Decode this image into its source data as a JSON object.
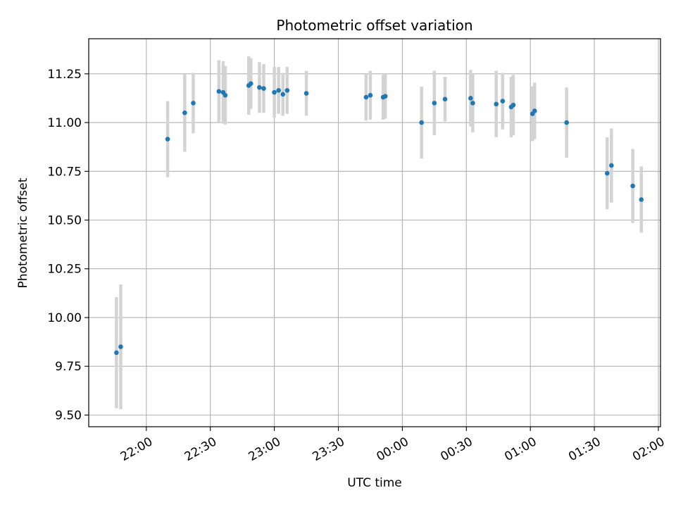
{
  "chart_data": {
    "type": "scatter",
    "title": "Photometric offset variation",
    "xlabel": "UTC time",
    "ylabel": "Photometric offset",
    "x_tick_labels": [
      "22:00",
      "22:30",
      "23:00",
      "23:30",
      "00:00",
      "00:30",
      "01:00",
      "01:30",
      "02:00"
    ],
    "y_tick_labels": [
      "9.50",
      "9.75",
      "10.00",
      "10.25",
      "10.50",
      "10.75",
      "11.00",
      "11.25"
    ],
    "y_ticks": [
      9.5,
      9.75,
      10.0,
      10.25,
      10.5,
      10.75,
      11.0,
      11.25
    ],
    "xlim": [
      "21:33",
      "02:01"
    ],
    "ylim": [
      9.44,
      11.43
    ],
    "grid": true,
    "colors": {
      "marker": "#1f77b4",
      "errorbar": "#d3d3d3",
      "grid": "#b0b0b0"
    },
    "series": [
      {
        "points": [
          {
            "t": "21:46",
            "y": 9.82,
            "err": 0.285
          },
          {
            "t": "21:48",
            "y": 9.85,
            "err": 0.32
          },
          {
            "t": "22:10",
            "y": 10.915,
            "err": 0.195
          },
          {
            "t": "22:18",
            "y": 11.05,
            "err": 0.2
          },
          {
            "t": "22:22",
            "y": 11.1,
            "err": 0.155
          },
          {
            "t": "22:34",
            "y": 11.16,
            "err": 0.16
          },
          {
            "t": "22:36",
            "y": 11.155,
            "err": 0.16
          },
          {
            "t": "22:37",
            "y": 11.14,
            "err": 0.15
          },
          {
            "t": "22:48",
            "y": 11.19,
            "err": 0.15
          },
          {
            "t": "22:49",
            "y": 11.2,
            "err": 0.13
          },
          {
            "t": "22:53",
            "y": 11.18,
            "err": 0.13
          },
          {
            "t": "22:55",
            "y": 11.175,
            "err": 0.125
          },
          {
            "t": "23:00",
            "y": 11.155,
            "err": 0.13
          },
          {
            "t": "23:02",
            "y": 11.165,
            "err": 0.12
          },
          {
            "t": "23:04",
            "y": 11.145,
            "err": 0.11
          },
          {
            "t": "23:06",
            "y": 11.165,
            "err": 0.12
          },
          {
            "t": "23:15",
            "y": 11.15,
            "err": 0.115
          },
          {
            "t": "23:43",
            "y": 11.13,
            "err": 0.12
          },
          {
            "t": "23:45",
            "y": 11.14,
            "err": 0.125
          },
          {
            "t": "23:51",
            "y": 11.13,
            "err": 0.115
          },
          {
            "t": "23:52",
            "y": 11.135,
            "err": 0.115
          },
          {
            "t": "00:09",
            "y": 11.0,
            "err": 0.185
          },
          {
            "t": "00:15",
            "y": 11.1,
            "err": 0.165
          },
          {
            "t": "00:20",
            "y": 11.12,
            "err": 0.115
          },
          {
            "t": "00:32",
            "y": 11.125,
            "err": 0.145
          },
          {
            "t": "00:33",
            "y": 11.1,
            "err": 0.15
          },
          {
            "t": "00:44",
            "y": 11.095,
            "err": 0.17
          },
          {
            "t": "00:47",
            "y": 11.11,
            "err": 0.145
          },
          {
            "t": "00:51",
            "y": 11.08,
            "err": 0.155
          },
          {
            "t": "00:52",
            "y": 11.09,
            "err": 0.155
          },
          {
            "t": "01:01",
            "y": 11.045,
            "err": 0.14
          },
          {
            "t": "01:02",
            "y": 11.06,
            "err": 0.145
          },
          {
            "t": "01:17",
            "y": 11.0,
            "err": 0.18
          },
          {
            "t": "01:36",
            "y": 10.74,
            "err": 0.185
          },
          {
            "t": "01:38",
            "y": 10.78,
            "err": 0.19
          },
          {
            "t": "01:48",
            "y": 10.675,
            "err": 0.19
          },
          {
            "t": "01:52",
            "y": 10.605,
            "err": 0.17
          }
        ]
      }
    ]
  }
}
